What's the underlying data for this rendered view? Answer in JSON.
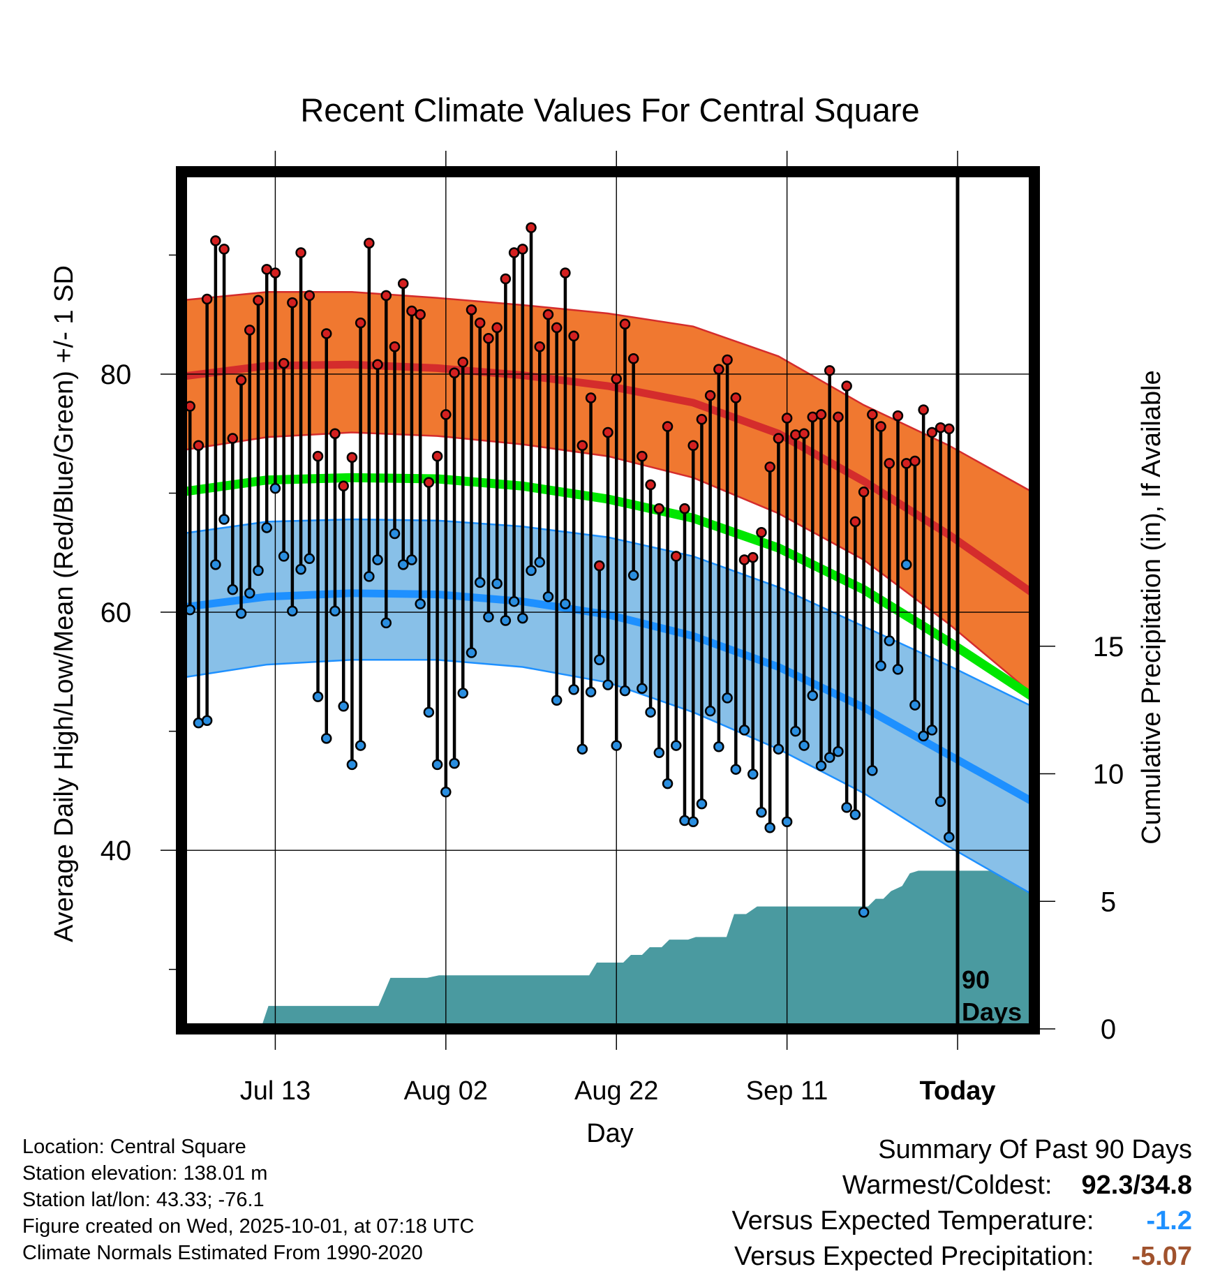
{
  "chart_data": {
    "type": "line",
    "title": "Recent Climate Values For Central Square",
    "xlabel": "Day",
    "ylabel": "Average Daily High/Low/Mean (Red/Blue/Green) +/- 1 SD",
    "ylabel_right": "Cumulative Precipitation (in), If Available",
    "x_ticks": [
      {
        "day": 11,
        "label": "Jul 13"
      },
      {
        "day": 31,
        "label": "Aug 02"
      },
      {
        "day": 51,
        "label": "Aug 22"
      },
      {
        "day": 71,
        "label": "Sep 11"
      },
      {
        "day": 91,
        "label": "Today"
      }
    ],
    "y_left": {
      "min": 25,
      "max": 97,
      "ticks": [
        40,
        60,
        80
      ],
      "minor_ticks": [
        30,
        50,
        70,
        90
      ]
    },
    "y_right": {
      "min": 0,
      "max": 33.6,
      "ticks": [
        0,
        5,
        10,
        15
      ]
    },
    "x_range": [
      0,
      100
    ],
    "today_day": 91,
    "today_label": [
      "90",
      "Days"
    ],
    "colors": {
      "high_band": "#f07830",
      "high_line": "#d42c2c",
      "low_band": "#88c0e8",
      "low_line": "#1e90ff",
      "mean_line": "#00e600",
      "precip": "#4a9aa0",
      "high_dot": "#d42020",
      "low_dot": "#2a8ee0"
    },
    "normals": {
      "days": [
        0,
        10,
        20,
        30,
        40,
        50,
        60,
        70,
        80,
        90,
        100
      ],
      "high_mean": [
        79.8,
        80.7,
        80.8,
        80.5,
        79.9,
        79.0,
        77.6,
        75.0,
        71.0,
        66.5,
        61.5
      ],
      "high_upper": [
        86.2,
        86.9,
        86.9,
        86.4,
        85.8,
        85.1,
        84.0,
        81.5,
        77.4,
        74.0,
        70.0
      ],
      "high_lower": [
        73.6,
        74.7,
        75.1,
        74.8,
        74.1,
        73.1,
        71.3,
        68.3,
        64.4,
        59.0,
        53.0
      ],
      "low_mean": [
        60.4,
        61.3,
        61.6,
        61.5,
        60.9,
        59.8,
        58.0,
        55.4,
        52.0,
        48.0,
        44.0
      ],
      "low_upper": [
        66.6,
        67.6,
        67.8,
        67.7,
        67.2,
        66.3,
        64.7,
        62.1,
        58.8,
        55.5,
        52.0
      ],
      "low_lower": [
        54.5,
        55.6,
        56.0,
        56.0,
        55.4,
        54.1,
        51.6,
        48.5,
        44.8,
        40.3,
        36.2
      ],
      "mean": [
        70.1,
        71.1,
        71.3,
        71.2,
        70.6,
        69.5,
        67.9,
        65.4,
        61.9,
        57.5,
        52.8
      ]
    },
    "daily_high": [
      77.3,
      74.0,
      86.3,
      91.2,
      90.5,
      74.6,
      79.5,
      83.7,
      86.2,
      88.8,
      88.5,
      80.9,
      86.0,
      90.2,
      86.6,
      73.1,
      83.4,
      75.0,
      70.6,
      73.0,
      84.3,
      91.0,
      80.8,
      86.6,
      82.3,
      87.6,
      85.3,
      85.0,
      70.9,
      73.1,
      76.6,
      80.1,
      81.0,
      85.4,
      84.3,
      83.0,
      83.9,
      88.0,
      90.2,
      90.5,
      92.3,
      82.3,
      85.0,
      83.9,
      88.5,
      83.2,
      74.0,
      78.0,
      63.9,
      75.1,
      79.6,
      84.2,
      81.3,
      73.1,
      70.7,
      68.7,
      75.6,
      64.7,
      68.7,
      74.0,
      76.2,
      78.2,
      80.4,
      81.2,
      78.0,
      64.4,
      64.6,
      66.7,
      72.2,
      74.6,
      76.3,
      74.9,
      75.0,
      76.4,
      76.6,
      80.3,
      76.4,
      79.0,
      67.6,
      70.1,
      76.6,
      75.6,
      72.5,
      76.5,
      72.5,
      72.7,
      77.0,
      75.1,
      75.5,
      75.4
    ],
    "daily_low": [
      60.2,
      50.7,
      50.9,
      64.0,
      67.8,
      61.9,
      59.9,
      61.6,
      63.5,
      67.1,
      70.4,
      64.7,
      60.1,
      63.6,
      64.5,
      52.9,
      49.4,
      60.1,
      52.1,
      47.2,
      48.8,
      63.0,
      64.4,
      59.1,
      66.6,
      64.0,
      64.4,
      60.7,
      51.6,
      47.2,
      44.9,
      47.3,
      53.2,
      56.6,
      62.5,
      59.6,
      62.4,
      59.3,
      60.9,
      59.5,
      63.5,
      64.2,
      61.3,
      52.6,
      60.7,
      53.5,
      48.5,
      53.3,
      56.0,
      53.9,
      48.8,
      53.4,
      63.1,
      53.6,
      51.6,
      48.2,
      45.6,
      48.8,
      42.5,
      42.4,
      43.9,
      51.7,
      48.7,
      52.8,
      46.8,
      50.1,
      46.4,
      43.2,
      41.9,
      48.5,
      42.4,
      50.0,
      48.8,
      53.0,
      47.1,
      47.8,
      48.3,
      43.6,
      43.0,
      34.8,
      46.7,
      55.5,
      57.6,
      55.2,
      64.0,
      52.2,
      49.6,
      50.1,
      44.1,
      41.1
    ],
    "cumulative_precip": [
      [
        0,
        0
      ],
      [
        9.3,
        0
      ],
      [
        10.2,
        0.9
      ],
      [
        23.1,
        0.9
      ],
      [
        24.5,
        2.0
      ],
      [
        28.8,
        2.0
      ],
      [
        30.2,
        2.1
      ],
      [
        47.8,
        2.1
      ],
      [
        48.7,
        2.6
      ],
      [
        51.8,
        2.6
      ],
      [
        52.7,
        2.9
      ],
      [
        54.0,
        2.9
      ],
      [
        54.9,
        3.2
      ],
      [
        56.3,
        3.2
      ],
      [
        57.2,
        3.5
      ],
      [
        59.4,
        3.5
      ],
      [
        60.3,
        3.6
      ],
      [
        63.9,
        3.6
      ],
      [
        64.8,
        4.5
      ],
      [
        66.2,
        4.5
      ],
      [
        67.5,
        4.8
      ],
      [
        80.5,
        4.8
      ],
      [
        81.4,
        5.1
      ],
      [
        82.3,
        5.1
      ],
      [
        83.2,
        5.4
      ],
      [
        84.5,
        5.6
      ],
      [
        85.4,
        6.1
      ],
      [
        86.4,
        6.2
      ],
      [
        100,
        6.2
      ]
    ]
  },
  "location_info": [
    "Location: Central Square",
    "Station elevation: 138.01 m",
    "Station lat/lon: 43.33; -76.1",
    "Figure created on Wed, 2025-10-01, at 07:18 UTC",
    "Climate Normals Estimated From 1990-2020"
  ],
  "summary": {
    "title": "Summary Of Past 90 Days",
    "warmest_coldest_label": "Warmest/Coldest:",
    "warmest_coldest_value": "92.3/34.8",
    "temp_label": "Versus Expected Temperature:",
    "temp_value": "-1.2",
    "precip_label": "Versus Expected Precipitation:",
    "precip_value": "-5.07"
  }
}
